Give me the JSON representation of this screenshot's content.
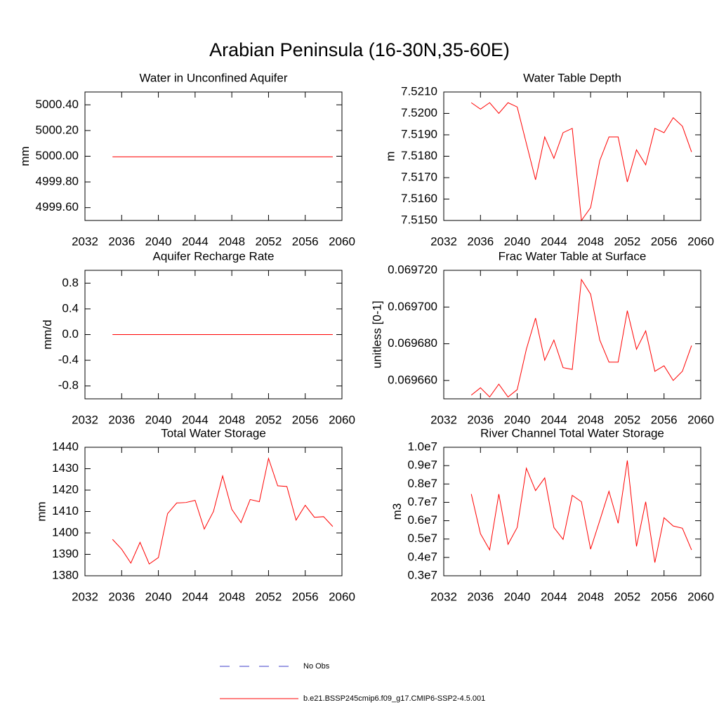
{
  "title": "Arabian Peninsula (16-30N,35-60E)",
  "legend": [
    {
      "name": "No Obs",
      "color": "#3c3cc8",
      "dashed": true
    },
    {
      "name": "b.e21.BSSP245cmip6.f09_g17.CMIP6-SSP2-4.5.001",
      "color": "#ff0000",
      "dashed": false
    }
  ],
  "chart_data": [
    {
      "type": "line",
      "title": "Water in Unconfined Aquifer",
      "y_label": "mm",
      "color": "#ff0000",
      "x": [
        2035,
        2036,
        2037,
        2038,
        2039,
        2040,
        2041,
        2042,
        2043,
        2044,
        2045,
        2046,
        2047,
        2048,
        2049,
        2050,
        2051,
        2052,
        2053,
        2054,
        2055,
        2056,
        2057,
        2058,
        2059
      ],
      "values": [
        4999.995,
        4999.995,
        4999.995,
        4999.995,
        4999.995,
        4999.995,
        4999.995,
        4999.995,
        4999.995,
        4999.995,
        4999.995,
        4999.995,
        4999.995,
        4999.995,
        4999.995,
        4999.995,
        4999.995,
        4999.995,
        4999.995,
        4999.995,
        4999.995,
        4999.995,
        4999.995,
        4999.995,
        4999.995
      ],
      "xlim": [
        2032,
        2060
      ],
      "xticks": [
        2032,
        2036,
        2040,
        2044,
        2048,
        2052,
        2056,
        2060
      ],
      "ylim": [
        4999.5,
        5000.5
      ],
      "yticks": [
        {
          "value": 4999.6,
          "label": "4999.60"
        },
        {
          "value": 4999.8,
          "label": "4999.80"
        },
        {
          "value": 5000,
          "label": "5000.00"
        },
        {
          "value": 5000.2,
          "label": "5000.20"
        },
        {
          "value": 5000.4,
          "label": "5000.40"
        }
      ]
    },
    {
      "type": "line",
      "title": "Water Table Depth",
      "y_label": "m",
      "color": "#ff0000",
      "x": [
        2035,
        2036,
        2037,
        2038,
        2039,
        2040,
        2041,
        2042,
        2043,
        2044,
        2045,
        2046,
        2047,
        2048,
        2049,
        2050,
        2051,
        2052,
        2053,
        2054,
        2055,
        2056,
        2057,
        2058,
        2059
      ],
      "values": [
        7.5205,
        7.5202,
        7.5205,
        7.52,
        7.5205,
        7.5203,
        7.5186,
        7.5169,
        7.5189,
        7.5179,
        7.5191,
        7.5193,
        7.515,
        7.5156,
        7.5178,
        7.5189,
        7.5189,
        7.5168,
        7.5183,
        7.5176,
        7.5193,
        7.5191,
        7.5198,
        7.5194,
        7.5182
      ],
      "xlim": [
        2032,
        2060
      ],
      "xticks": [
        2032,
        2036,
        2040,
        2044,
        2048,
        2052,
        2056,
        2060
      ],
      "ylim": [
        7.515,
        7.521
      ],
      "yticks": [
        {
          "value": 7.515,
          "label": "7.5150"
        },
        {
          "value": 7.516,
          "label": "7.5160"
        },
        {
          "value": 7.517,
          "label": "7.5170"
        },
        {
          "value": 7.518,
          "label": "7.5180"
        },
        {
          "value": 7.519,
          "label": "7.5190"
        },
        {
          "value": 7.52,
          "label": "7.5200"
        },
        {
          "value": 7.521,
          "label": "7.5210"
        }
      ]
    },
    {
      "type": "line",
      "title": "Aquifer Recharge Rate",
      "y_label": "mm/d",
      "color": "#ff0000",
      "x": [
        2035,
        2036,
        2037,
        2038,
        2039,
        2040,
        2041,
        2042,
        2043,
        2044,
        2045,
        2046,
        2047,
        2048,
        2049,
        2050,
        2051,
        2052,
        2053,
        2054,
        2055,
        2056,
        2057,
        2058,
        2059
      ],
      "values": [
        0,
        0,
        0,
        0,
        0,
        0,
        0,
        0,
        0,
        0,
        0,
        0,
        0,
        0,
        0,
        0,
        0,
        0,
        0,
        0,
        0,
        0,
        0,
        0,
        0
      ],
      "xlim": [
        2032,
        2060
      ],
      "xticks": [
        2032,
        2036,
        2040,
        2044,
        2048,
        2052,
        2056,
        2060
      ],
      "ylim": [
        -1,
        1
      ],
      "yticks": [
        -0.8,
        -0.4,
        {
          "value": 0,
          "label": "0.0"
        },
        0.4,
        0.8
      ]
    },
    {
      "type": "line",
      "title": "Frac Water Table at Surface",
      "y_label": "unitless [0-1]",
      "color": "#ff0000",
      "x": [
        2035,
        2036,
        2037,
        2038,
        2039,
        2040,
        2041,
        2042,
        2043,
        2044,
        2045,
        2046,
        2047,
        2048,
        2049,
        2050,
        2051,
        2052,
        2053,
        2054,
        2055,
        2056,
        2057,
        2058,
        2059
      ],
      "values": [
        0.069652,
        0.069656,
        0.069651,
        0.069658,
        0.069651,
        0.069655,
        0.069677,
        0.069694,
        0.069671,
        0.069682,
        0.069667,
        0.069666,
        0.069715,
        0.069707,
        0.069682,
        0.06967,
        0.06967,
        0.069698,
        0.069677,
        0.069687,
        0.069665,
        0.069668,
        0.06966,
        0.069665,
        0.069679
      ],
      "xlim": [
        2032,
        2060
      ],
      "xticks": [
        2032,
        2036,
        2040,
        2044,
        2048,
        2052,
        2056,
        2060
      ],
      "ylim": [
        0.06965,
        0.06972
      ],
      "yticks": [
        {
          "value": 0.06966,
          "label": "0.069660"
        },
        {
          "value": 0.06968,
          "label": "0.069680"
        },
        {
          "value": 0.0697,
          "label": "0.069700"
        },
        {
          "value": 0.06972,
          "label": "0.069720"
        }
      ]
    },
    {
      "type": "line",
      "title": "Total Water Storage",
      "y_label": "mm",
      "color": "#ff0000",
      "x": [
        2035,
        2036,
        2037,
        2038,
        2039,
        2040,
        2041,
        2042,
        2043,
        2044,
        2045,
        2046,
        2047,
        2048,
        2049,
        2050,
        2051,
        2052,
        2053,
        2054,
        2055,
        2056,
        2057,
        2058,
        2059
      ],
      "values": [
        1397,
        1392.4,
        1385.9,
        1395.6,
        1385.5,
        1388.5,
        1409,
        1414,
        1414.2,
        1415.2,
        1401.8,
        1410,
        1426.6,
        1411,
        1404.8,
        1415.6,
        1414.6,
        1434.8,
        1422,
        1421.7,
        1406,
        1412.9,
        1407.3,
        1407.6,
        1403
      ],
      "xlim": [
        2032,
        2060
      ],
      "xticks": [
        2032,
        2036,
        2040,
        2044,
        2048,
        2052,
        2056,
        2060
      ],
      "ylim": [
        1380,
        1440
      ],
      "yticks": [
        1380,
        1390,
        1400,
        1410,
        1420,
        1430,
        1440
      ]
    },
    {
      "type": "line",
      "title": "River Channel Total Water Storage",
      "y_label": "m3",
      "color": "#ff0000",
      "x": [
        2035,
        2036,
        2037,
        2038,
        2039,
        2040,
        2041,
        2042,
        2043,
        2044,
        2045,
        2046,
        2047,
        2048,
        2049,
        2050,
        2051,
        2052,
        2053,
        2054,
        2055,
        2056,
        2057,
        2058,
        2059
      ],
      "values": [
        7450000,
        5290000,
        4410000,
        7450000,
        4710000,
        5630000,
        8860000,
        7640000,
        8330000,
        5630000,
        4980000,
        7380000,
        7030000,
        4450000,
        6010000,
        7600000,
        5860000,
        9280000,
        4600000,
        7030000,
        3720000,
        6160000,
        5710000,
        5590000,
        4410000
      ],
      "xlim": [
        2032,
        2060
      ],
      "xticks": [
        2032,
        2036,
        2040,
        2044,
        2048,
        2052,
        2056,
        2060
      ],
      "ylim": [
        3000000,
        10000000
      ],
      "yticks": [
        {
          "value": 3000000,
          "label": "0.3e7"
        },
        {
          "value": 4000000,
          "label": "0.4e7"
        },
        {
          "value": 5000000,
          "label": "0.5e7"
        },
        {
          "value": 6000000,
          "label": "0.6e7"
        },
        {
          "value": 7000000,
          "label": "0.7e7"
        },
        {
          "value": 8000000,
          "label": "0.8e7"
        },
        {
          "value": 9000000,
          "label": "0.9e7"
        },
        {
          "value": 10000000,
          "label": "1.0e7"
        }
      ]
    }
  ]
}
